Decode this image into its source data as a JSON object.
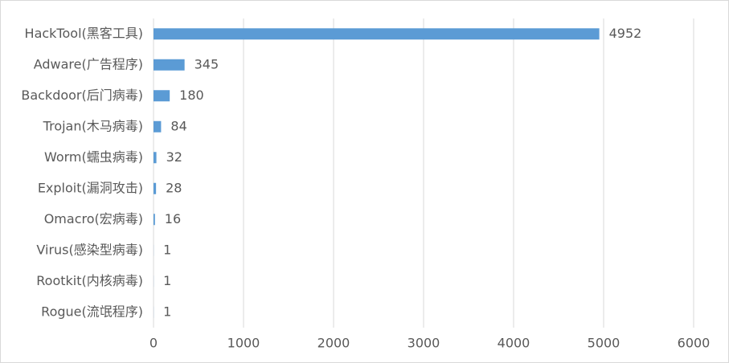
{
  "chart_data": {
    "type": "bar",
    "orientation": "horizontal",
    "categories": [
      "HackTool(黑客工具)",
      "Adware(广告程序)",
      "Backdoor(后门病毒)",
      "Trojan(木马病毒)",
      "Worm(蠕虫病毒)",
      "Exploit(漏洞攻击)",
      "Omacro(宏病毒)",
      "Virus(感染型病毒)",
      "Rootkit(内核病毒)",
      "Rogue(流氓程序)"
    ],
    "values": [
      4952,
      345,
      180,
      84,
      32,
      28,
      16,
      1,
      1,
      1
    ],
    "color": "#5b9bd5",
    "xlim": [
      0,
      6000
    ],
    "xticks": [
      0,
      1000,
      2000,
      3000,
      4000,
      5000,
      6000
    ],
    "grid": true
  }
}
